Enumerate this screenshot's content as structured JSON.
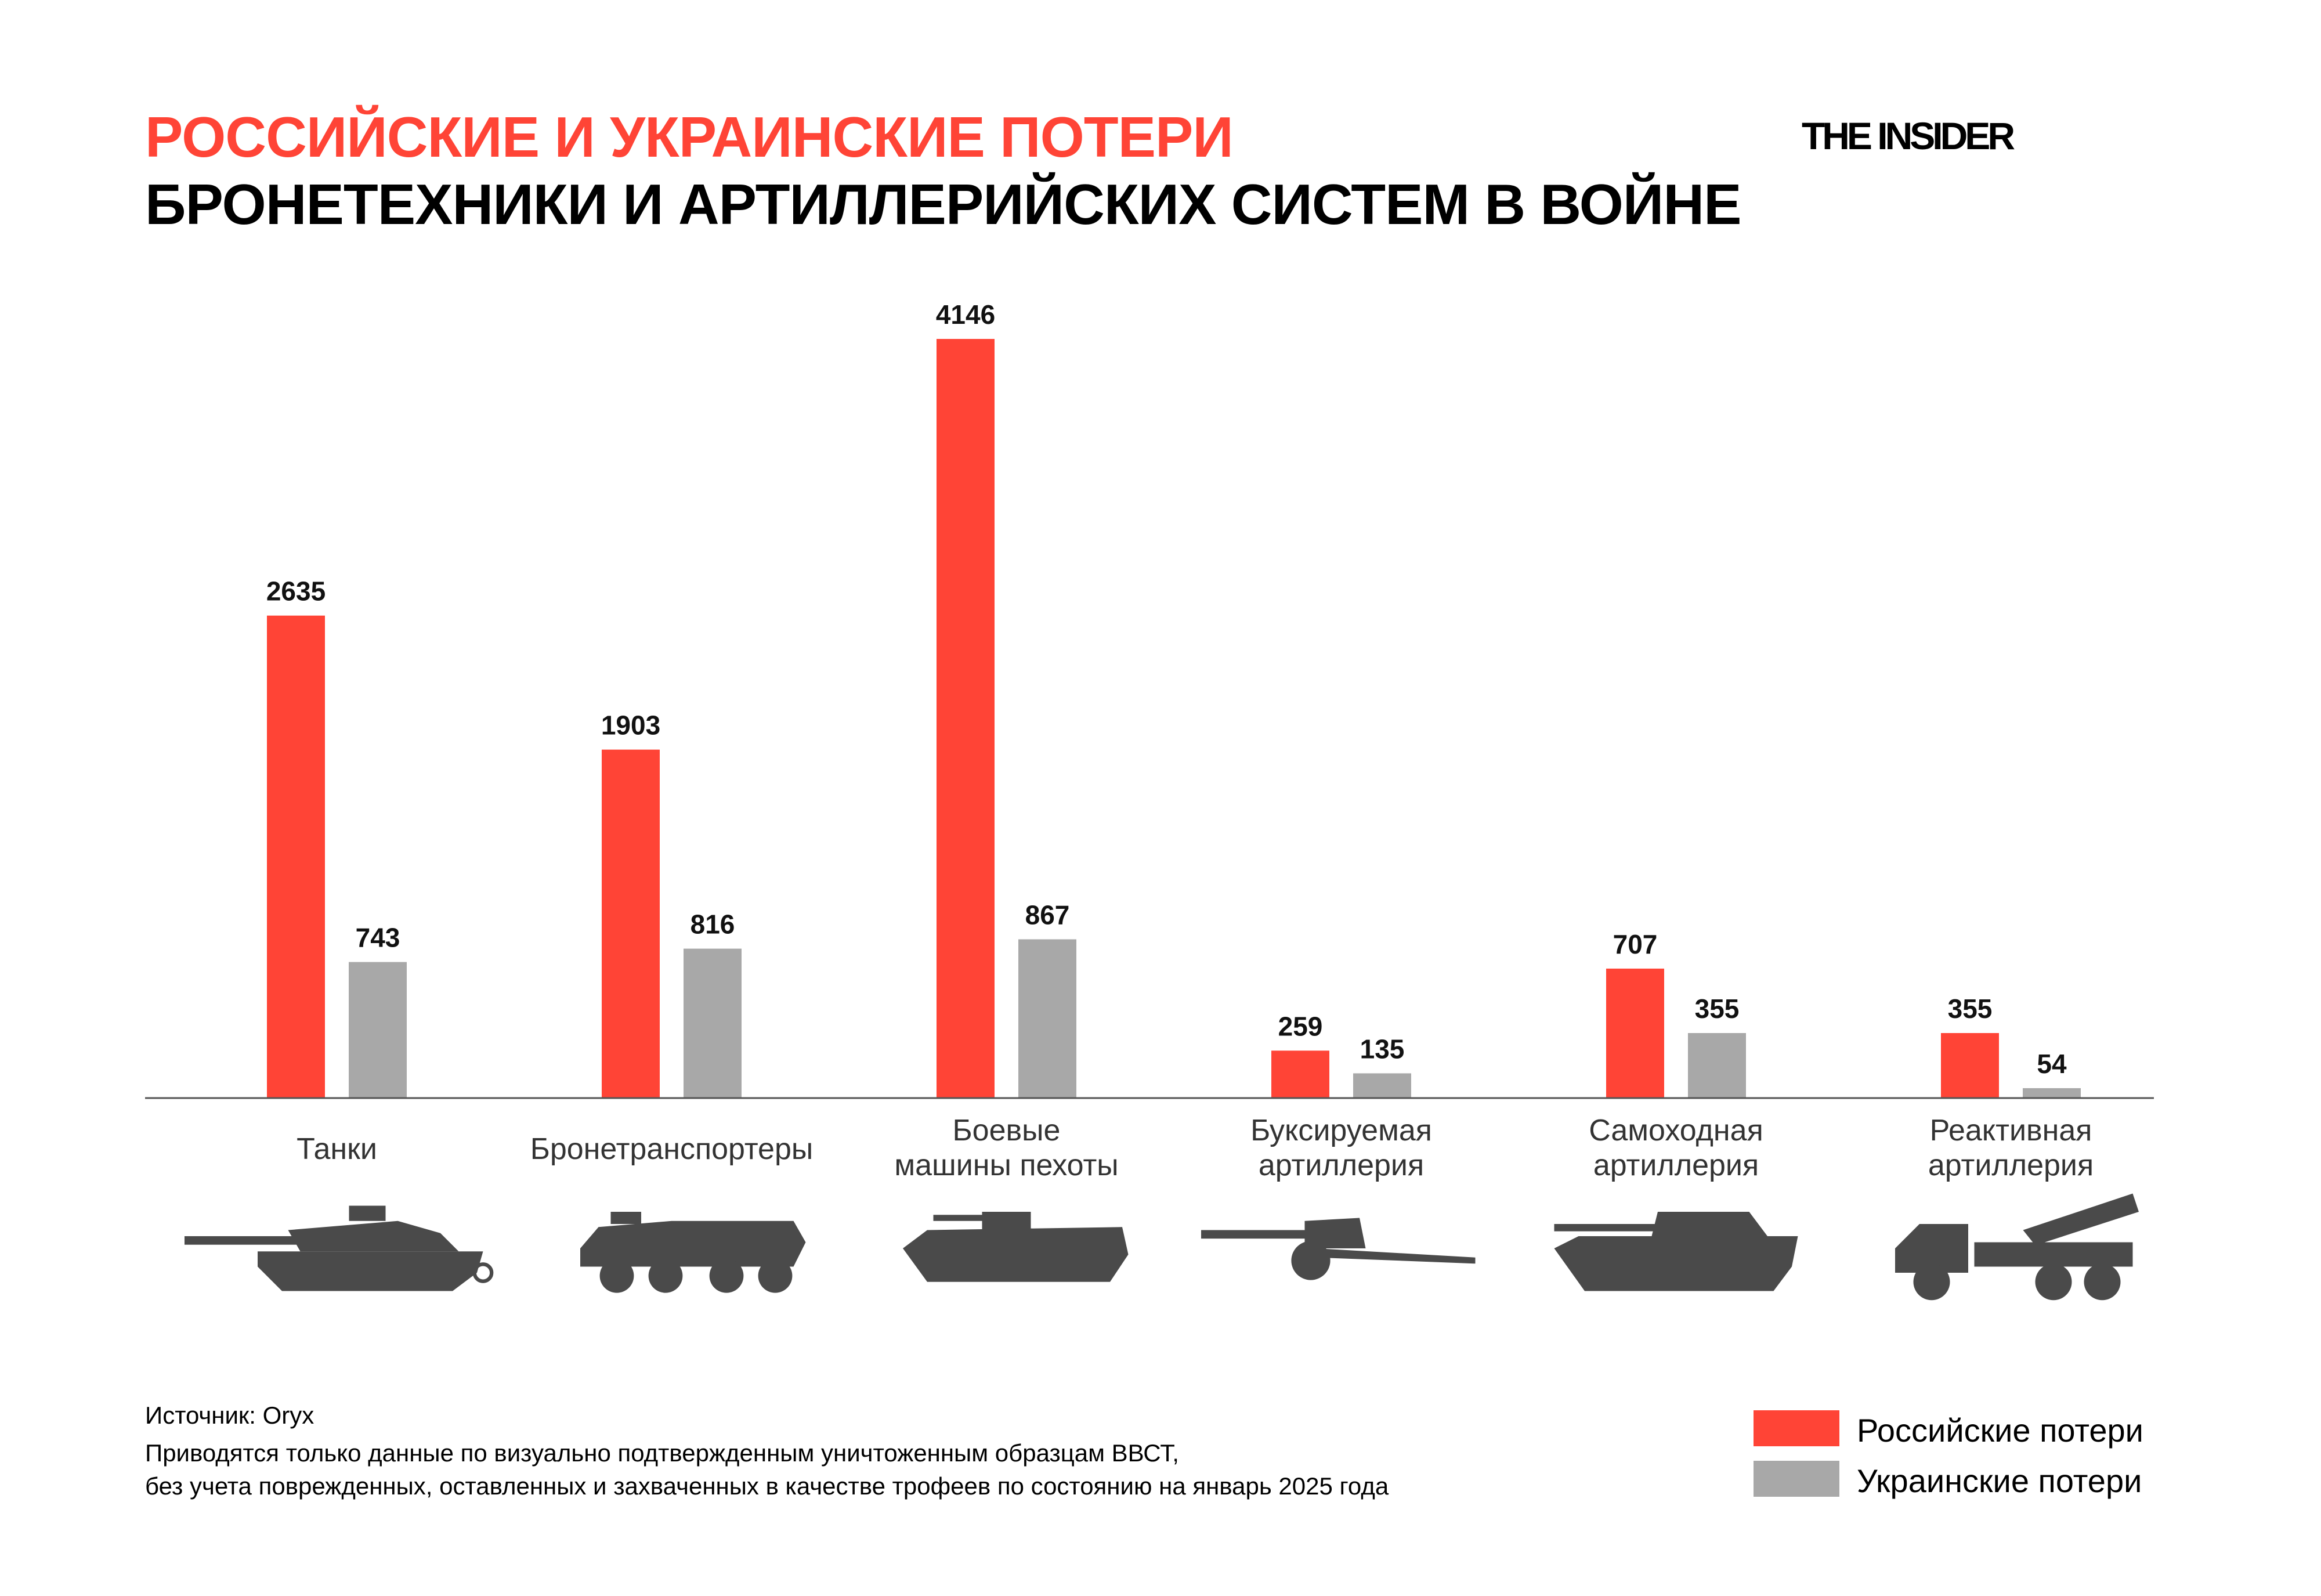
{
  "header": {
    "title_line1": "РОССИЙСКИЕ И УКРАИНСКИЕ ПОТЕРИ",
    "title_line2": "БРОНЕТЕХНИКИ И АРТИЛЛЕРИЙСКИХ СИСТЕМ В ВОЙНЕ",
    "logo": "THE INSIDER"
  },
  "colors": {
    "russian": "#ff4436",
    "ukrainian": "#a8a8a8",
    "title_accent": "#ff4436",
    "icon": "#4a4a4a"
  },
  "chart_data": {
    "type": "bar",
    "categories": [
      "Танки",
      "Бронетранспортеры",
      "Боевые машины пехоты",
      "Буксируемая артиллерия",
      "Самоходная артиллерия",
      "Реактивная артиллерия"
    ],
    "category_lines": [
      [
        "Танки"
      ],
      [
        "Бронетранспортеры"
      ],
      [
        "Боевые",
        "машины пехоты"
      ],
      [
        "Буксируемая",
        "артиллерия"
      ],
      [
        "Самоходная",
        "артиллерия"
      ],
      [
        "Реактивная",
        "артиллерия"
      ]
    ],
    "series": [
      {
        "name": "Российские потери",
        "values": [
          2635,
          1903,
          4146,
          259,
          707,
          355
        ]
      },
      {
        "name": "Украинские потери",
        "values": [
          743,
          816,
          867,
          135,
          355,
          54
        ]
      }
    ],
    "icons": [
      "tank-icon",
      "apc-icon",
      "ifv-icon",
      "towed-artillery-icon",
      "self-propelled-artillery-icon",
      "rocket-artillery-icon"
    ],
    "data_labels": true,
    "grid": false,
    "legend_position": "bottom-right",
    "ylim": [
      0,
      4146
    ]
  },
  "footer": {
    "source": "Источник: Oryx",
    "note_line1": "Приводятся только данные по визуально подтвержденным уничтоженным образцам ВВСТ,",
    "note_line2": "без учета поврежденных, оставленных и захваченных в качестве трофеев по состоянию на январь 2025 года"
  },
  "legend": {
    "russian": "Российские потери",
    "ukrainian": "Украинские потери"
  }
}
